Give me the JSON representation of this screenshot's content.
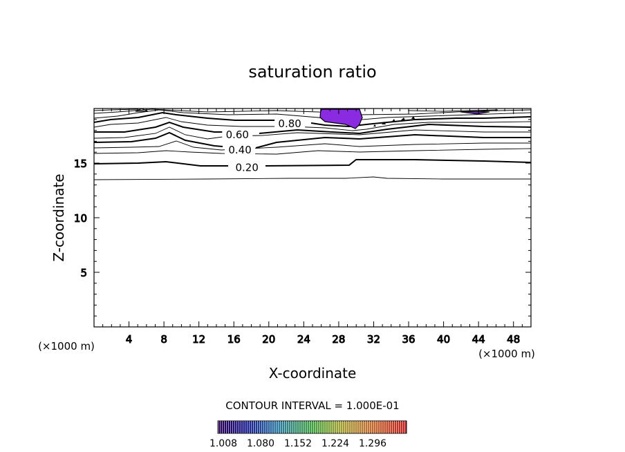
{
  "chart_data": {
    "type": "contour",
    "title": "saturation ratio",
    "xlabel": "X-coordinate",
    "ylabel": "Z-coordinate",
    "x_unit": "(×1000 m)",
    "xlim": [
      0,
      50
    ],
    "ylim": [
      0,
      20
    ],
    "x_ticks": [
      "4",
      "8",
      "12",
      "16",
      "20",
      "24",
      "28",
      "32",
      "36",
      "40",
      "44",
      "48"
    ],
    "y_ticks": [
      "5",
      "10",
      "15"
    ],
    "x_tick_values": [
      4,
      8,
      12,
      16,
      20,
      24,
      28,
      32,
      36,
      40,
      44,
      48
    ],
    "y_tick_values": [
      5,
      10,
      15
    ],
    "contour_labels": [
      {
        "text": "0.20",
        "x": 17.5,
        "y": 14.6
      },
      {
        "text": "0.40",
        "x": 16.7,
        "y": 16.2
      },
      {
        "text": "0.60",
        "x": 16.4,
        "y": 17.6
      },
      {
        "text": "0.80",
        "x": 22.4,
        "y": 18.6
      }
    ],
    "contour_interval_text": "CONTOUR INTERVAL = 1.000E-01",
    "colorbar_labels": [
      "1.008",
      "1.080",
      "1.152",
      "1.224",
      "1.296"
    ],
    "colors": {
      "supersaturated_fill": "#8a2be2",
      "supersaturated_small": "#5b2a9a"
    }
  }
}
